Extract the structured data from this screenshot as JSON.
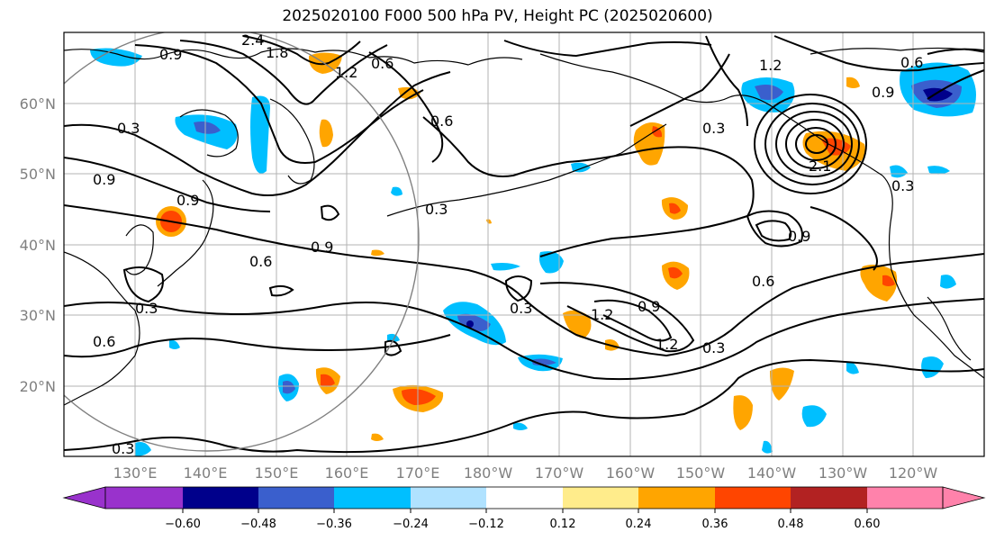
{
  "title": "2025020100 F000 500 hPa PV, Height PC (2025020600)",
  "latitude_labels": [
    "60°N",
    "50°N",
    "40°N",
    "30°N",
    "20°N"
  ],
  "longitude_labels": [
    "130°E",
    "140°E",
    "150°E",
    "160°E",
    "170°E",
    "180°W",
    "170°W",
    "160°W",
    "150°W",
    "140°W",
    "130°W",
    "120°W"
  ],
  "contour_labels": [
    "0.9",
    "2.4",
    "1.8",
    "1.2",
    "0.6",
    "0.6",
    "0.3",
    "0.9",
    "0.9",
    "0.3",
    "0.6",
    "0.9",
    "0.3",
    "0.6",
    "0.3",
    "1.2",
    "0.3",
    "0.6",
    "0.9",
    "2.1",
    "0.3",
    "0.9",
    "0.6",
    "0.9",
    "1.2",
    "0.3",
    "1.2",
    "0.3"
  ],
  "colorbar": {
    "tick_labels": [
      "−0.60",
      "−0.48",
      "−0.36",
      "−0.24",
      "−0.12",
      "0.12",
      "0.24",
      "0.36",
      "0.48",
      "0.60"
    ],
    "colors": [
      "#9932cc",
      "#00008b",
      "#3a5fcd",
      "#00bfff",
      "#b0e2ff",
      "#ffffff",
      "#ffec8b",
      "#ffa500",
      "#ff4500",
      "#b22222",
      "#ff82ab"
    ]
  },
  "colors": {
    "coast": "#000000",
    "grid": "#b3b3b3",
    "contour": "#000000",
    "circle": "#808080",
    "axis_label": "#7f7f7f"
  }
}
